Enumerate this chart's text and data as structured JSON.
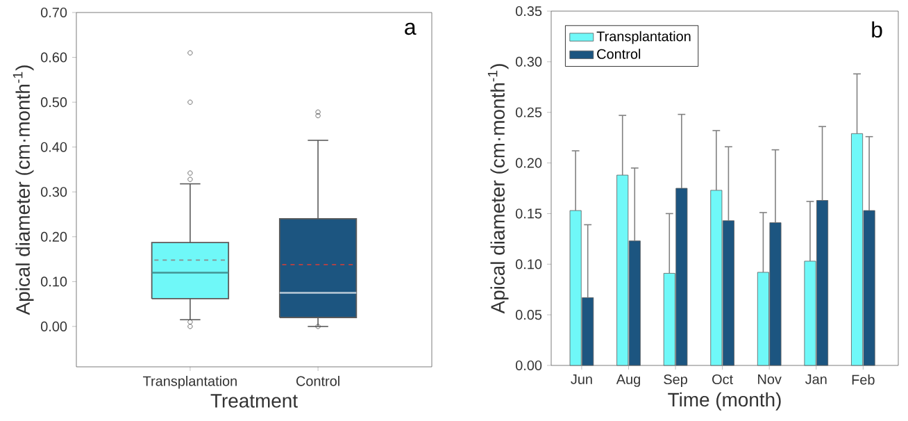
{
  "chart_data": [
    {
      "type": "box",
      "xlabel": "Treatment",
      "ylabel": "Apical diameter (cm·month$^{-1}$)",
      "categories": [
        "Transplantation",
        "Control"
      ],
      "colors": [
        "#6ff8f8",
        "#1c5580"
      ],
      "boxes": [
        {
          "low": 0.015,
          "q1": 0.062,
          "median": 0.12,
          "q3": 0.187,
          "high": 0.318,
          "mean": 0.148,
          "outliers": [
            0.61,
            0.5,
            0.342,
            0.328,
            0.01,
            0.0
          ]
        },
        {
          "low": 0.0,
          "q1": 0.02,
          "median": 0.075,
          "q3": 0.24,
          "high": 0.415,
          "mean": 0.138,
          "outliers": [
            0.478,
            0.47,
            0.0
          ]
        }
      ],
      "ylim": [
        -0.09,
        0.7
      ],
      "yticks": [
        {
          "value": 0,
          "label": "0.00"
        },
        {
          "value": 0.1,
          "label": "0.10"
        },
        {
          "value": 0.2,
          "label": "0.20"
        },
        {
          "value": 0.3,
          "label": "0.30"
        },
        {
          "value": 0.4,
          "label": "0.40"
        },
        {
          "value": 0.5,
          "label": "0.50"
        },
        {
          "value": 0.6,
          "label": "0.60"
        },
        {
          "value": 0.7,
          "label": "0.70"
        }
      ],
      "annotations": [
        "a"
      ],
      "grid": false
    },
    {
      "type": "bar",
      "xlabel": "Time (month)",
      "ylabel": "Apical diameter (cm·month$^{-1}$)",
      "categories": [
        "Jun",
        "Aug",
        "Sep",
        "Oct",
        "Nov",
        "Jan",
        "Feb"
      ],
      "series": [
        {
          "name": "Transplantation",
          "color": "#6ff8f8",
          "values": [
            0.153,
            0.188,
            0.091,
            0.173,
            0.092,
            0.103,
            0.229
          ],
          "errors": [
            [
              0.153,
              0.212
            ],
            [
              0.188,
              0.247
            ],
            [
              0.091,
              0.15
            ],
            [
              0.173,
              0.232
            ],
            [
              0.092,
              0.151
            ],
            [
              0.103,
              0.162
            ],
            [
              0.229,
              0.288
            ]
          ]
        },
        {
          "name": "Control",
          "color": "#1c5580",
          "values": [
            0.067,
            0.123,
            0.175,
            0.143,
            0.141,
            0.163,
            0.153
          ],
          "errors": [
            [
              0.067,
              0.139
            ],
            [
              0.123,
              0.195
            ],
            [
              0.175,
              0.248
            ],
            [
              0.143,
              0.216
            ],
            [
              0.141,
              0.213
            ],
            [
              0.163,
              0.236
            ],
            [
              0.153,
              0.226
            ]
          ]
        }
      ],
      "ylim": [
        0,
        0.35
      ],
      "yticks": [
        {
          "value": 0,
          "label": "0.00"
        },
        {
          "value": 0.05,
          "label": "0.05"
        },
        {
          "value": 0.1,
          "label": "0.10"
        },
        {
          "value": 0.15,
          "label": "0.15"
        },
        {
          "value": 0.2,
          "label": "0.20"
        },
        {
          "value": 0.25,
          "label": "0.25"
        },
        {
          "value": 0.3,
          "label": "0.30"
        },
        {
          "value": 0.35,
          "label": "0.35"
        }
      ],
      "annotations": [
        "b"
      ],
      "grid": false,
      "legend": "top left"
    }
  ]
}
